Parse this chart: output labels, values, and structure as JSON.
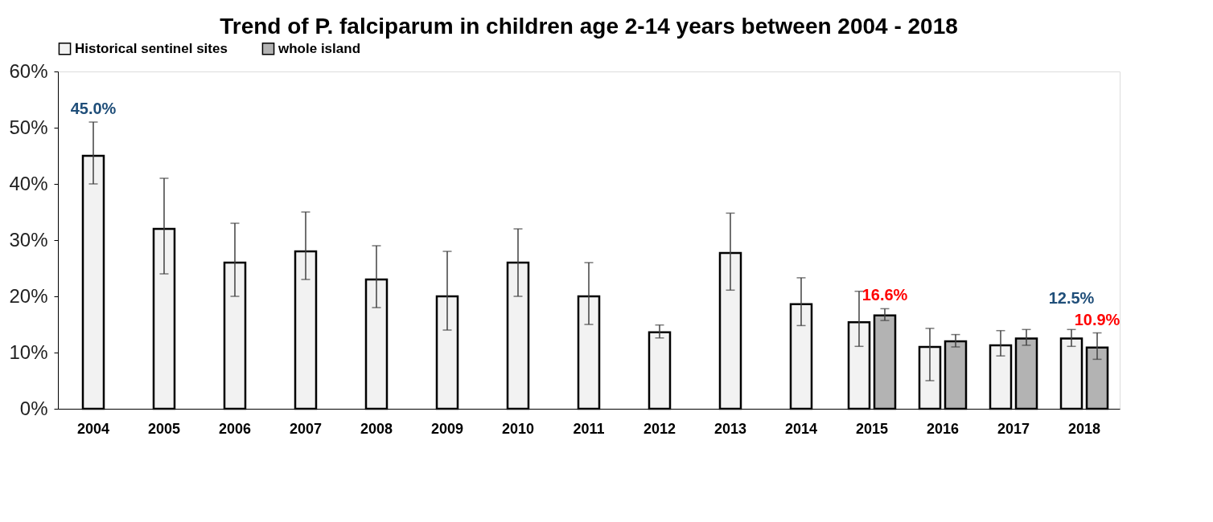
{
  "chart_data": {
    "type": "bar",
    "title": "Trend of P. falciparum in children age 2-14 years between 2004 - 2018",
    "categories": [
      "2004",
      "2005",
      "2006",
      "2007",
      "2008",
      "2009",
      "2010",
      "2011",
      "2012",
      "2013",
      "2014",
      "2015",
      "2016",
      "2017",
      "2018"
    ],
    "series": [
      {
        "name": "Historical sentinel sites",
        "color": "#f2f2f2",
        "values": [
          45.0,
          32.0,
          26.0,
          28.0,
          23.0,
          20.0,
          26.0,
          20.0,
          13.6,
          27.7,
          18.6,
          15.4,
          11.0,
          11.3,
          12.5
        ],
        "errors": [
          [
            40,
            51
          ],
          [
            24,
            41
          ],
          [
            20,
            33
          ],
          [
            23,
            35
          ],
          [
            18,
            29
          ],
          [
            14,
            28
          ],
          [
            20,
            32
          ],
          [
            15,
            26
          ],
          [
            12.6,
            14.9
          ],
          [
            21.1,
            34.8
          ],
          [
            14.8,
            23.3
          ],
          [
            11.1,
            20.9
          ],
          [
            5.0,
            14.3
          ],
          [
            9.4,
            13.9
          ],
          [
            11.1,
            14.1
          ]
        ],
        "value_labels": [
          "45.0%",
          null,
          null,
          null,
          null,
          null,
          null,
          null,
          null,
          null,
          null,
          null,
          null,
          null,
          "12.5%"
        ]
      },
      {
        "name": "whole island",
        "color": "#b3b3b3",
        "values": [
          null,
          null,
          null,
          null,
          null,
          null,
          null,
          null,
          null,
          null,
          null,
          16.6,
          12.0,
          12.5,
          10.9
        ],
        "errors": [
          null,
          null,
          null,
          null,
          null,
          null,
          null,
          null,
          null,
          null,
          null,
          [
            15.7,
            17.8
          ],
          [
            11.0,
            13.2
          ],
          [
            11.3,
            14.1
          ],
          [
            8.8,
            13.5
          ]
        ],
        "value_labels": [
          null,
          null,
          null,
          null,
          null,
          null,
          null,
          null,
          null,
          null,
          null,
          "16.6%",
          null,
          null,
          "10.9%"
        ]
      }
    ],
    "ylim": [
      0,
      60
    ],
    "yticks": [
      {
        "value": 0,
        "label": "0%"
      },
      {
        "value": 10,
        "label": "10%"
      },
      {
        "value": 20,
        "label": "20%"
      },
      {
        "value": 30,
        "label": "30%"
      },
      {
        "value": 40,
        "label": "40%"
      },
      {
        "value": 50,
        "label": "50%"
      },
      {
        "value": 60,
        "label": "60%"
      }
    ],
    "grid": false,
    "legend": "top"
  }
}
